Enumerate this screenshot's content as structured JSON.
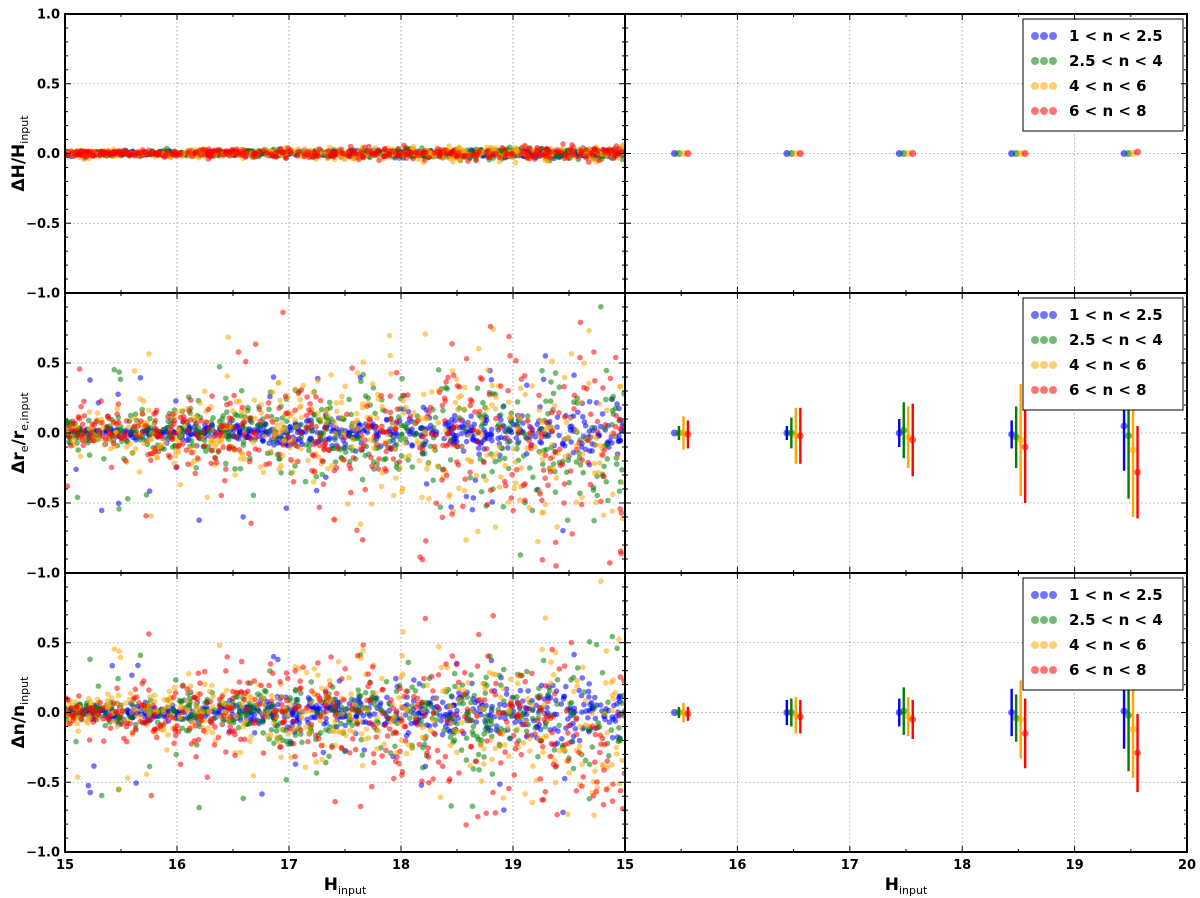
{
  "figure": {
    "colors": {
      "1<n<2.5": "#0000ff",
      "2.5<n<4": "#008000",
      "4<n<6": "#ffa500",
      "6<n<8": "#ff0000"
    }
  },
  "chart_data": [
    {
      "type": "scatter",
      "panel": "top-left",
      "xlim": [
        15,
        20
      ],
      "ylim": [
        -1.0,
        1.0
      ],
      "xticks": [
        "15",
        "16",
        "17",
        "18",
        "19"
      ],
      "yticks": [
        "1.0",
        "0.5",
        "0.0",
        "−0.5",
        "−1.0"
      ],
      "ylabel": "ΔH/H_input",
      "grid": true,
      "series_spread": {
        "1<n<2.5": 0.01,
        "2.5<n<4": 0.015,
        "4<n<6": 0.02,
        "6<n<8": 0.02
      },
      "note": "dense scatter of simulated galaxies, all concentrated tightly around 0.0"
    },
    {
      "type": "errorbar",
      "panel": "top-right",
      "xlim": [
        15,
        20
      ],
      "ylim": [
        -1.0,
        1.0
      ],
      "grid": true,
      "legend": {
        "position": "upper-right",
        "entries": [
          "1 < n < 2.5",
          "2.5 < n < 4",
          "4 < n < 6",
          "6 < n < 8"
        ]
      },
      "x": [
        15.5,
        16.5,
        17.5,
        18.5,
        19.5
      ],
      "series": [
        {
          "name": "1 < n < 2.5",
          "offset": -0.06,
          "y": [
            0.0,
            0.0,
            0.0,
            0.0,
            0.0
          ],
          "err": [
            0.005,
            0.005,
            0.005,
            0.005,
            0.005
          ]
        },
        {
          "name": "2.5 < n < 4",
          "offset": -0.02,
          "y": [
            0.0,
            0.0,
            0.0,
            0.0,
            0.0
          ],
          "err": [
            0.005,
            0.005,
            0.005,
            0.005,
            0.008
          ]
        },
        {
          "name": "4 < n < 6",
          "offset": 0.02,
          "y": [
            0.0,
            0.0,
            0.0,
            0.0,
            0.0
          ],
          "err": [
            0.006,
            0.006,
            0.006,
            0.008,
            0.01
          ]
        },
        {
          "name": "6 < n < 8",
          "offset": 0.06,
          "y": [
            0.0,
            0.0,
            0.0,
            0.0,
            0.01
          ],
          "err": [
            0.006,
            0.006,
            0.006,
            0.008,
            0.012
          ]
        }
      ]
    },
    {
      "type": "scatter",
      "panel": "middle-left",
      "xlim": [
        15,
        20
      ],
      "ylim": [
        -1.0,
        1.0
      ],
      "xticks": [
        "15",
        "16",
        "17",
        "18",
        "19"
      ],
      "yticks": [
        "",
        "0.5",
        "0.0",
        "−0.5",
        "−1.0"
      ],
      "ylabel": "Δr_e/r_e,input",
      "grid": true,
      "series_spread": {
        "1<n<2.5": 0.06,
        "2.5<n<4": 0.2,
        "4<n<6": 0.25,
        "6<n<8": 0.28
      },
      "note": "scatter widening toward fainter H; redder (higher n) series biased negative at faint end"
    },
    {
      "type": "errorbar",
      "panel": "middle-right",
      "xlim": [
        15,
        20
      ],
      "ylim": [
        -1.0,
        1.0
      ],
      "grid": true,
      "legend": {
        "position": "upper-right",
        "entries": [
          "1 < n < 2.5",
          "2.5 < n < 4",
          "4 < n < 6",
          "6 < n < 8"
        ]
      },
      "x": [
        15.5,
        16.5,
        17.5,
        18.5,
        19.5
      ],
      "series": [
        {
          "name": "1 < n < 2.5",
          "offset": -0.06,
          "y": [
            0.0,
            0.0,
            0.0,
            -0.01,
            0.05
          ],
          "err": [
            0.01,
            0.05,
            0.1,
            0.1,
            0.32
          ]
        },
        {
          "name": "2.5 < n < 4",
          "offset": -0.02,
          "y": [
            0.0,
            0.0,
            0.02,
            -0.03,
            -0.02
          ],
          "err": [
            0.05,
            0.11,
            0.2,
            0.22,
            0.45
          ]
        },
        {
          "name": "4 < n < 6",
          "offset": 0.02,
          "y": [
            0.0,
            -0.02,
            -0.03,
            -0.05,
            -0.12
          ],
          "err": [
            0.12,
            0.2,
            0.22,
            0.4,
            0.48
          ]
        },
        {
          "name": "6 < n < 8",
          "offset": 0.06,
          "y": [
            -0.01,
            -0.02,
            -0.05,
            -0.1,
            -0.28
          ],
          "err": [
            0.1,
            0.2,
            0.26,
            0.4,
            0.33
          ]
        }
      ]
    },
    {
      "type": "scatter",
      "panel": "bottom-left",
      "xlim": [
        15,
        20
      ],
      "ylim": [
        -1.0,
        1.0
      ],
      "xticks": [
        "15",
        "16",
        "17",
        "18",
        "19"
      ],
      "yticks": [
        "",
        "0.5",
        "0.0",
        "−0.5",
        "−1.0"
      ],
      "xlabel": "H_input",
      "ylabel": "Δn/n_input",
      "grid": true,
      "series_spread": {
        "1<n<2.5": 0.07,
        "2.5<n<4": 0.15,
        "4<n<6": 0.22,
        "6<n<8": 0.25
      },
      "note": "scatter widening toward fainter H; higher n series biased negative at faint end"
    },
    {
      "type": "errorbar",
      "panel": "bottom-right",
      "xlim": [
        15,
        20
      ],
      "ylim": [
        -1.0,
        1.0
      ],
      "xticks": [
        "15",
        "16",
        "17",
        "18",
        "19",
        "20"
      ],
      "xlabel": "H_input",
      "grid": true,
      "legend": {
        "position": "upper-right",
        "entries": [
          "1 < n < 2.5",
          "2.5 < n < 4",
          "4 < n < 6",
          "6 < n < 8"
        ]
      },
      "x": [
        15.5,
        16.5,
        17.5,
        18.5,
        19.5
      ],
      "series": [
        {
          "name": "1 < n < 2.5",
          "offset": -0.06,
          "y": [
            0.0,
            0.0,
            0.0,
            0.0,
            0.01
          ],
          "err": [
            0.01,
            0.09,
            0.1,
            0.17,
            0.27
          ]
        },
        {
          "name": "2.5 < n < 4",
          "offset": -0.02,
          "y": [
            0.0,
            0.0,
            0.01,
            -0.04,
            -0.02
          ],
          "err": [
            0.04,
            0.1,
            0.17,
            0.17,
            0.4
          ]
        },
        {
          "name": "4 < n < 6",
          "offset": 0.02,
          "y": [
            0.0,
            -0.02,
            -0.03,
            -0.05,
            -0.12
          ],
          "err": [
            0.07,
            0.13,
            0.14,
            0.28,
            0.35
          ]
        },
        {
          "name": "6 < n < 8",
          "offset": 0.06,
          "y": [
            -0.01,
            -0.03,
            -0.05,
            -0.15,
            -0.29
          ],
          "err": [
            0.05,
            0.12,
            0.14,
            0.25,
            0.28
          ]
        }
      ]
    }
  ]
}
